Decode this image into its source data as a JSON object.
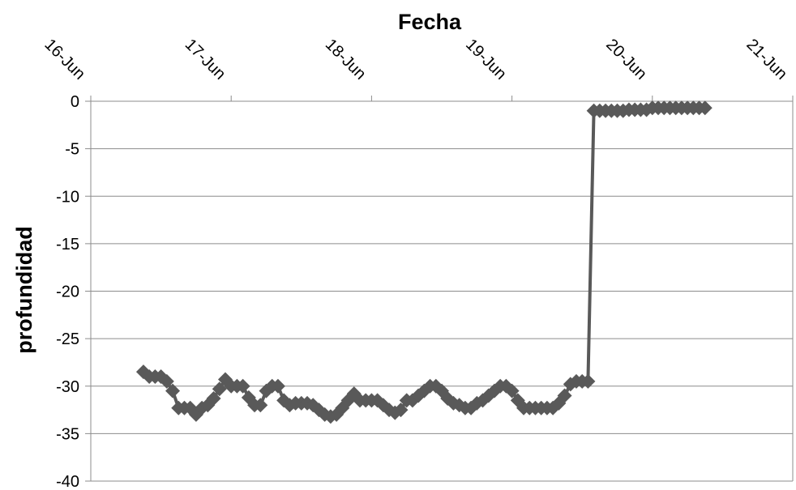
{
  "chart_data": {
    "type": "line",
    "title": "",
    "xlabel": "Fecha",
    "ylabel": "profundidad",
    "x_axis_position": "top",
    "x_tick_labels": [
      "16-Jun",
      "17-Jun",
      "18-Jun",
      "19-Jun",
      "20-Jun",
      "21-Jun"
    ],
    "xlim": [
      "2010-06-16T00:00",
      "2010-06-21T00:00"
    ],
    "ylim": [
      -40,
      0
    ],
    "y_ticks": [
      0,
      -5,
      -10,
      -15,
      -20,
      -25,
      -30,
      -35,
      -40
    ],
    "grid": "horizontal",
    "legend": "none",
    "series": [
      {
        "color": "#595959",
        "marker": "diamond",
        "x": [
          "2010-06-16T09:00",
          "2010-06-16T10:00",
          "2010-06-16T11:00",
          "2010-06-16T12:00",
          "2010-06-16T13:00",
          "2010-06-16T14:00",
          "2010-06-16T15:00",
          "2010-06-16T16:00",
          "2010-06-16T17:00",
          "2010-06-16T18:00",
          "2010-06-16T19:00",
          "2010-06-16T20:00",
          "2010-06-16T21:00",
          "2010-06-16T22:00",
          "2010-06-16T23:00",
          "2010-06-17T00:00",
          "2010-06-17T01:00",
          "2010-06-17T02:00",
          "2010-06-17T03:00",
          "2010-06-17T04:00",
          "2010-06-17T05:00",
          "2010-06-17T06:00",
          "2010-06-17T07:00",
          "2010-06-17T08:00",
          "2010-06-17T09:00",
          "2010-06-17T10:00",
          "2010-06-17T11:00",
          "2010-06-17T12:00",
          "2010-06-17T13:00",
          "2010-06-17T14:00",
          "2010-06-17T15:00",
          "2010-06-17T16:00",
          "2010-06-17T17:00",
          "2010-06-17T18:00",
          "2010-06-17T19:00",
          "2010-06-17T20:00",
          "2010-06-17T21:00",
          "2010-06-17T22:00",
          "2010-06-17T23:00",
          "2010-06-18T00:00",
          "2010-06-18T01:00",
          "2010-06-18T02:00",
          "2010-06-18T03:00",
          "2010-06-18T04:00",
          "2010-06-18T05:00",
          "2010-06-18T06:00",
          "2010-06-18T07:00",
          "2010-06-18T08:00",
          "2010-06-18T09:00",
          "2010-06-18T10:00",
          "2010-06-18T11:00",
          "2010-06-18T12:00",
          "2010-06-18T13:00",
          "2010-06-18T14:00",
          "2010-06-18T15:00",
          "2010-06-18T16:00",
          "2010-06-18T17:00",
          "2010-06-18T18:00",
          "2010-06-18T19:00",
          "2010-06-18T20:00",
          "2010-06-18T21:00",
          "2010-06-18T22:00",
          "2010-06-18T23:00",
          "2010-06-19T00:00",
          "2010-06-19T01:00",
          "2010-06-19T02:00",
          "2010-06-19T03:00",
          "2010-06-19T04:00",
          "2010-06-19T05:00",
          "2010-06-19T06:00",
          "2010-06-19T07:00",
          "2010-06-19T08:00",
          "2010-06-19T09:00",
          "2010-06-19T10:00",
          "2010-06-19T11:00",
          "2010-06-19T12:00",
          "2010-06-19T13:00",
          "2010-06-19T14:00",
          "2010-06-19T15:00",
          "2010-06-19T16:00",
          "2010-06-19T17:00",
          "2010-06-19T18:00",
          "2010-06-19T19:00",
          "2010-06-19T20:00",
          "2010-06-19T21:00",
          "2010-06-19T22:00",
          "2010-06-19T23:00",
          "2010-06-20T00:00",
          "2010-06-20T01:00",
          "2010-06-20T02:00",
          "2010-06-20T03:00",
          "2010-06-20T04:00",
          "2010-06-20T05:00",
          "2010-06-20T06:00",
          "2010-06-20T07:00",
          "2010-06-20T08:00",
          "2010-06-20T09:00"
        ],
        "y": [
          -28.5,
          -29,
          -29,
          -29,
          -29.5,
          -30.5,
          -32.3,
          -32.3,
          -32.3,
          -33,
          -32.3,
          -32,
          -31.3,
          -30.3,
          -29.3,
          -30,
          -30,
          -30,
          -31.2,
          -32,
          -32,
          -30.5,
          -30,
          -30,
          -31.5,
          -32,
          -31.8,
          -31.8,
          -31.8,
          -32,
          -32.5,
          -33,
          -33.2,
          -33,
          -32.3,
          -31.5,
          -30.8,
          -31.5,
          -31.5,
          -31.5,
          -31.5,
          -32,
          -32.5,
          -32.8,
          -32.5,
          -31.5,
          -31.5,
          -31,
          -30.5,
          -30,
          -30,
          -30.5,
          -31.3,
          -31.8,
          -32,
          -32.3,
          -32.3,
          -31.8,
          -31.5,
          -31,
          -30.5,
          -30,
          -30,
          -30.5,
          -31.5,
          -32.3,
          -32.3,
          -32.3,
          -32.3,
          -32.3,
          -32.3,
          -31.8,
          -31,
          -29.8,
          -29.5,
          -29.5,
          -29.5,
          -1,
          -1,
          -1,
          -1,
          -1,
          -1,
          -0.9,
          -0.9,
          -0.9,
          -0.9,
          -0.7,
          -0.7,
          -0.7,
          -0.7,
          -0.7,
          -0.7,
          -0.7,
          -0.7,
          -0.7,
          -0.7
        ]
      }
    ]
  }
}
